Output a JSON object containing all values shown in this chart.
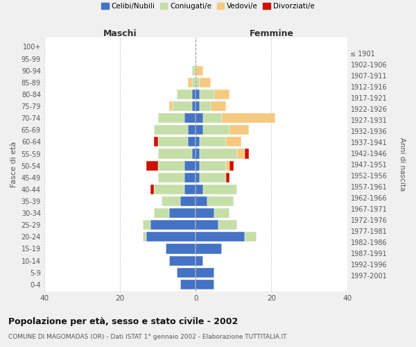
{
  "age_groups": [
    "0-4",
    "5-9",
    "10-14",
    "15-19",
    "20-24",
    "25-29",
    "30-34",
    "35-39",
    "40-44",
    "45-49",
    "50-54",
    "55-59",
    "60-64",
    "65-69",
    "70-74",
    "75-79",
    "80-84",
    "85-89",
    "90-94",
    "95-99",
    "100+"
  ],
  "birth_years": [
    "1997-2001",
    "1992-1996",
    "1987-1991",
    "1982-1986",
    "1977-1981",
    "1972-1976",
    "1967-1971",
    "1962-1966",
    "1957-1961",
    "1952-1956",
    "1947-1951",
    "1942-1946",
    "1937-1941",
    "1932-1936",
    "1927-1931",
    "1922-1926",
    "1917-1921",
    "1912-1916",
    "1907-1911",
    "1902-1906",
    "≤ 1901"
  ],
  "males": {
    "celibi": [
      4,
      5,
      7,
      8,
      13,
      12,
      7,
      4,
      3,
      3,
      3,
      1,
      2,
      2,
      3,
      1,
      1,
      0,
      0,
      0,
      0
    ],
    "coniugati": [
      0,
      0,
      0,
      0,
      1,
      2,
      4,
      5,
      8,
      7,
      7,
      9,
      8,
      9,
      7,
      5,
      4,
      1,
      1,
      0,
      0
    ],
    "vedovi": [
      0,
      0,
      0,
      0,
      0,
      0,
      0,
      0,
      0,
      0,
      0,
      0,
      0,
      0,
      0,
      1,
      0,
      1,
      0,
      0,
      0
    ],
    "divorziati": [
      0,
      0,
      0,
      0,
      0,
      0,
      0,
      0,
      1,
      0,
      3,
      0,
      1,
      0,
      0,
      0,
      0,
      0,
      0,
      0,
      0
    ]
  },
  "females": {
    "nubili": [
      5,
      5,
      2,
      7,
      13,
      6,
      5,
      3,
      2,
      1,
      1,
      1,
      1,
      2,
      2,
      1,
      1,
      0,
      0,
      0,
      0
    ],
    "coniugate": [
      0,
      0,
      0,
      0,
      3,
      5,
      4,
      7,
      9,
      7,
      7,
      10,
      7,
      7,
      5,
      3,
      4,
      1,
      0,
      0,
      0
    ],
    "vedove": [
      0,
      0,
      0,
      0,
      0,
      0,
      0,
      0,
      0,
      0,
      1,
      2,
      4,
      5,
      14,
      4,
      4,
      3,
      2,
      0,
      0
    ],
    "divorziate": [
      0,
      0,
      0,
      0,
      0,
      0,
      0,
      0,
      0,
      1,
      1,
      1,
      0,
      0,
      0,
      0,
      0,
      0,
      0,
      0,
      0
    ]
  },
  "colors": {
    "celibi_nubili": "#4472C4",
    "coniugati_e": "#c5dea8",
    "vedovi_e": "#f5c97f",
    "divorziati_e": "#cc1100"
  },
  "xlim": 40,
  "title": "Popolazione per età, sesso e stato civile - 2002",
  "subtitle": "COMUNE DI MAGOMADAS (OR) - Dati ISTAT 1° gennaio 2002 - Elaborazione TUTTITALIA.IT",
  "ylabel": "Fasce di età",
  "ylabel_right": "Anni di nascita",
  "label_maschi": "Maschi",
  "label_femmine": "Femmine",
  "legend_labels": [
    "Celibi/Nubili",
    "Coniugati/e",
    "Vedovi/e",
    "Divorziati/e"
  ],
  "bg_color": "#f0f0f0",
  "plot_bg_color": "#ffffff"
}
